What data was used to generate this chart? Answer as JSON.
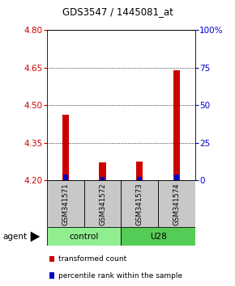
{
  "title": "GDS3547 / 1445081_at",
  "samples": [
    "GSM341571",
    "GSM341572",
    "GSM341573",
    "GSM341574"
  ],
  "group_spans": [
    [
      "control",
      0,
      2
    ],
    [
      "U28",
      2,
      4
    ]
  ],
  "group_colors": [
    "#90EE90",
    "#55CC55"
  ],
  "red_tops": [
    4.46,
    4.27,
    4.275,
    4.64
  ],
  "blue_tops": [
    4.222,
    4.212,
    4.213,
    4.222
  ],
  "bar_bottom": 4.2,
  "ylim_left": [
    4.2,
    4.8
  ],
  "ylim_right": [
    0,
    100
  ],
  "left_ticks": [
    4.2,
    4.35,
    4.5,
    4.65,
    4.8
  ],
  "right_ticks": [
    0,
    25,
    50,
    75,
    100
  ],
  "right_tick_labels": [
    "0",
    "25",
    "50",
    "75",
    "100%"
  ],
  "left_tick_color": "#cc0000",
  "right_tick_color": "#0000cc",
  "red_bar_width": 0.18,
  "blue_bar_width": 0.12,
  "sample_box_color": "#c8c8c8",
  "agent_label": "agent",
  "legend_red": "transformed count",
  "legend_blue": "percentile rank within the sample"
}
